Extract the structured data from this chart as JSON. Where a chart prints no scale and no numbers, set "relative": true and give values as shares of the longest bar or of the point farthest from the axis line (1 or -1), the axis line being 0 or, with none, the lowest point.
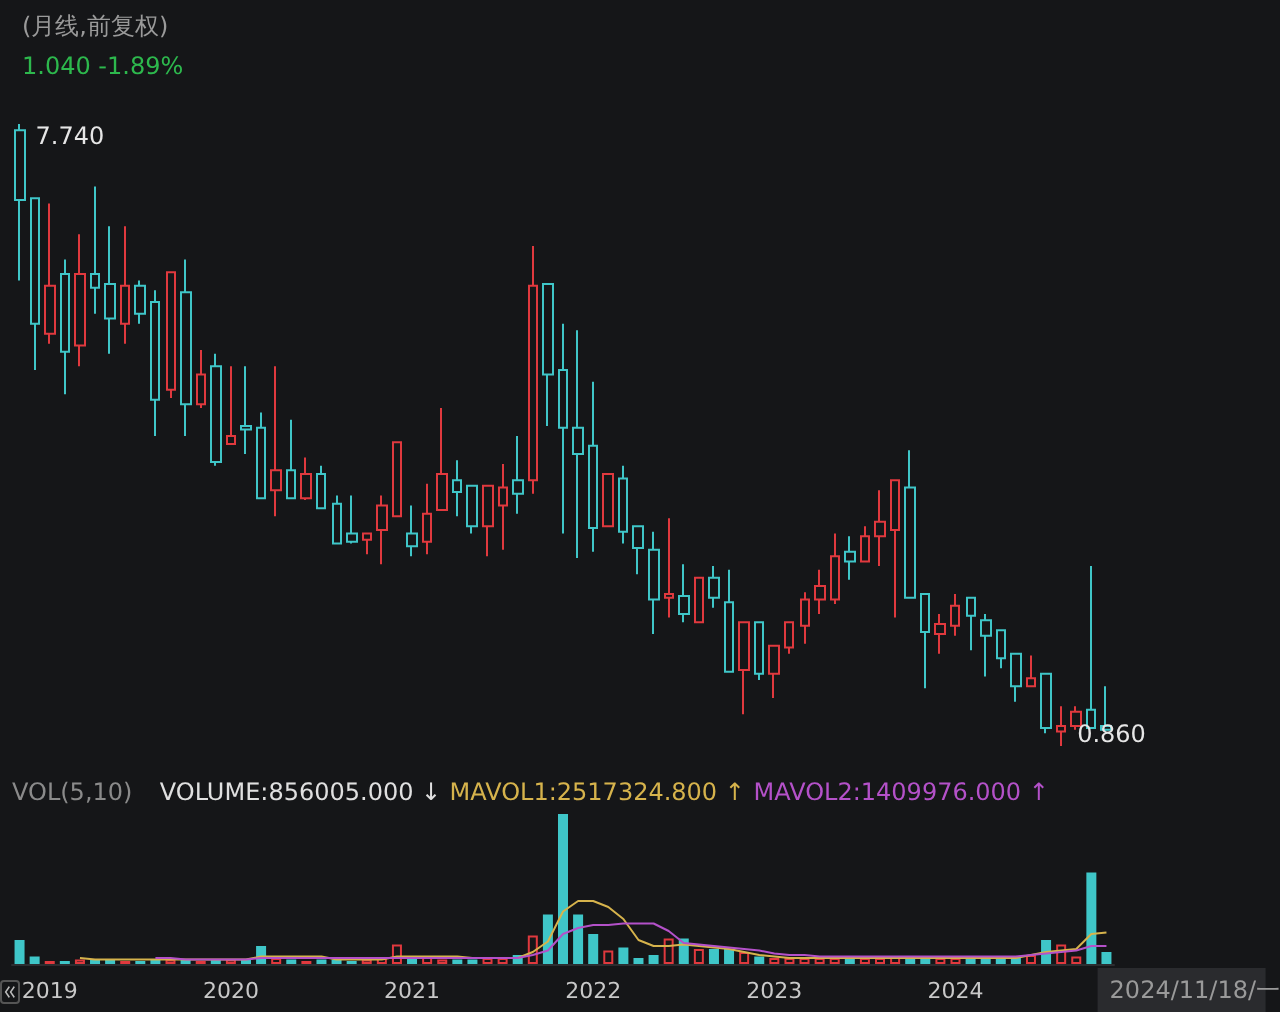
{
  "chart_data": [
    {
      "type": "candlestick",
      "title": "(月线,前复权)",
      "subtitle": "1.040 -1.89%",
      "tick_labels": false,
      "categories": [
        null,
        null,
        "2019",
        null,
        null,
        null,
        null,
        null,
        null,
        null,
        null,
        null,
        null,
        null,
        "2020",
        null,
        null,
        null,
        null,
        null,
        null,
        null,
        null,
        null,
        null,
        null,
        "2021",
        null,
        null,
        null,
        null,
        null,
        null,
        null,
        null,
        null,
        null,
        null,
        "2022",
        null,
        null,
        null,
        null,
        null,
        null,
        null,
        null,
        null,
        null,
        null,
        "2023",
        null,
        null,
        null,
        null,
        null,
        null,
        null,
        null,
        null,
        null,
        null,
        "2024",
        null,
        null,
        null,
        null,
        null,
        null,
        null,
        null,
        null,
        null
      ],
      "ohlc": [
        [
          7.67,
          7.74,
          6.01,
          6.9
        ],
        [
          6.92,
          6.92,
          5.02,
          5.53
        ],
        [
          5.42,
          6.86,
          5.31,
          5.95
        ],
        [
          6.08,
          6.24,
          4.75,
          5.22
        ],
        [
          5.29,
          6.52,
          5.06,
          6.08
        ],
        [
          6.08,
          7.05,
          5.64,
          5.93
        ],
        [
          5.97,
          6.61,
          5.2,
          5.59
        ],
        [
          5.53,
          6.61,
          5.31,
          5.95
        ],
        [
          5.95,
          6.01,
          5.53,
          5.64
        ],
        [
          5.77,
          5.9,
          4.29,
          4.69
        ],
        [
          4.8,
          6.1,
          4.71,
          6.1
        ],
        [
          5.88,
          6.24,
          4.29,
          4.64
        ],
        [
          4.64,
          5.24,
          4.6,
          4.97
        ],
        [
          5.06,
          5.2,
          3.96,
          4.0
        ],
        [
          4.2,
          5.06,
          4.2,
          4.29
        ],
        [
          4.4,
          5.06,
          4.09,
          4.36
        ],
        [
          4.38,
          4.55,
          3.6,
          3.6
        ],
        [
          3.69,
          5.06,
          3.4,
          3.91
        ],
        [
          3.91,
          4.47,
          3.6,
          3.6
        ],
        [
          3.6,
          4.05,
          3.58,
          3.87
        ],
        [
          3.87,
          3.96,
          3.49,
          3.49
        ],
        [
          3.54,
          3.63,
          3.1,
          3.1
        ],
        [
          3.21,
          3.63,
          3.1,
          3.12
        ],
        [
          3.14,
          3.21,
          2.98,
          3.21
        ],
        [
          3.25,
          3.63,
          2.87,
          3.52
        ],
        [
          3.4,
          4.22,
          3.4,
          4.22
        ],
        [
          3.21,
          3.52,
          2.96,
          3.07
        ],
        [
          3.12,
          3.76,
          2.98,
          3.43
        ],
        [
          3.47,
          4.6,
          3.47,
          3.87
        ],
        [
          3.8,
          4.02,
          3.4,
          3.67
        ],
        [
          3.74,
          3.74,
          3.21,
          3.29
        ],
        [
          3.29,
          3.74,
          2.96,
          3.74
        ],
        [
          3.52,
          3.98,
          3.03,
          3.72
        ],
        [
          3.8,
          4.29,
          3.43,
          3.65
        ],
        [
          3.8,
          6.39,
          3.65,
          5.95
        ],
        [
          5.97,
          5.97,
          4.4,
          4.97
        ],
        [
          5.02,
          5.53,
          3.21,
          4.38
        ],
        [
          4.38,
          5.46,
          2.94,
          4.09
        ],
        [
          4.18,
          4.89,
          3.01,
          3.27
        ],
        [
          3.29,
          3.87,
          3.29,
          3.87
        ],
        [
          3.82,
          3.96,
          3.1,
          3.23
        ],
        [
          3.29,
          3.29,
          2.76,
          3.05
        ],
        [
          3.03,
          3.23,
          2.1,
          2.48
        ],
        [
          2.5,
          3.38,
          2.28,
          2.54
        ],
        [
          2.52,
          2.87,
          2.23,
          2.32
        ],
        [
          2.23,
          2.72,
          2.23,
          2.72
        ],
        [
          2.72,
          2.85,
          2.39,
          2.5
        ],
        [
          2.45,
          2.81,
          1.68,
          1.68
        ],
        [
          1.7,
          2.23,
          1.21,
          2.23
        ],
        [
          2.23,
          2.23,
          1.59,
          1.66
        ],
        [
          1.66,
          1.97,
          1.39,
          1.97
        ],
        [
          1.95,
          2.23,
          1.88,
          2.23
        ],
        [
          2.19,
          2.56,
          1.99,
          2.48
        ],
        [
          2.48,
          2.81,
          2.32,
          2.63
        ],
        [
          2.48,
          3.21,
          2.43,
          2.96
        ],
        [
          3.01,
          3.18,
          2.7,
          2.9
        ],
        [
          2.9,
          3.29,
          2.9,
          3.18
        ],
        [
          3.18,
          3.69,
          2.85,
          3.34
        ],
        [
          3.25,
          3.8,
          2.28,
          3.8
        ],
        [
          3.72,
          4.13,
          2.5,
          2.5
        ],
        [
          2.54,
          2.54,
          1.5,
          2.12
        ],
        [
          2.1,
          2.32,
          1.88,
          2.21
        ],
        [
          2.19,
          2.54,
          2.08,
          2.41
        ],
        [
          2.5,
          2.5,
          1.92,
          2.3
        ],
        [
          2.25,
          2.32,
          1.63,
          2.08
        ],
        [
          2.14,
          2.14,
          1.72,
          1.83
        ],
        [
          1.88,
          1.88,
          1.35,
          1.52
        ],
        [
          1.52,
          1.86,
          1.52,
          1.61
        ],
        [
          1.66,
          1.66,
          1.0,
          1.06
        ],
        [
          1.02,
          1.3,
          0.86,
          1.08
        ],
        [
          1.08,
          1.3,
          1.04,
          1.24
        ],
        [
          1.26,
          2.85,
          1.06,
          1.06
        ],
        [
          1.08,
          1.52,
          1.02,
          1.04
        ]
      ],
      "colors": [
        "#3fc6c8",
        "#3fc6c8",
        "#e0393e",
        "#3fc6c8",
        "#e0393e",
        "#3fc6c8",
        "#3fc6c8",
        "#e0393e",
        "#3fc6c8",
        "#3fc6c8",
        "#e0393e",
        "#3fc6c8",
        "#e0393e",
        "#3fc6c8",
        "#e0393e",
        "#3fc6c8",
        "#3fc6c8",
        "#e0393e",
        "#3fc6c8",
        "#e0393e",
        "#3fc6c8",
        "#3fc6c8",
        "#3fc6c8",
        "#e0393e",
        "#e0393e",
        "#e0393e",
        "#3fc6c8",
        "#e0393e",
        "#e0393e",
        "#3fc6c8",
        "#3fc6c8",
        "#e0393e",
        "#e0393e",
        "#3fc6c8",
        "#e0393e",
        "#3fc6c8",
        "#3fc6c8",
        "#3fc6c8",
        "#3fc6c8",
        "#e0393e",
        "#3fc6c8",
        "#3fc6c8",
        "#3fc6c8",
        "#e0393e",
        "#3fc6c8",
        "#e0393e",
        "#3fc6c8",
        "#3fc6c8",
        "#e0393e",
        "#3fc6c8",
        "#e0393e",
        "#e0393e",
        "#e0393e",
        "#e0393e",
        "#e0393e",
        "#3fc6c8",
        "#e0393e",
        "#e0393e",
        "#e0393e",
        "#3fc6c8",
        "#3fc6c8",
        "#e0393e",
        "#e0393e",
        "#3fc6c8",
        "#3fc6c8",
        "#3fc6c8",
        "#3fc6c8",
        "#e0393e",
        "#3fc6c8",
        "#e0393e",
        "#e0393e",
        "#3fc6c8",
        "#3fc6c8"
      ],
      "annotations": [
        "7.740",
        "0.860"
      ]
    },
    {
      "type": "bar",
      "relative": true,
      "marker": "none",
      "categories": [
        null,
        null,
        "2019",
        null,
        null,
        null,
        null,
        null,
        null,
        null,
        null,
        null,
        null,
        null,
        "2020",
        null,
        null,
        null,
        null,
        null,
        null,
        null,
        null,
        null,
        null,
        null,
        "2021",
        null,
        null,
        null,
        null,
        null,
        null,
        null,
        null,
        null,
        null,
        null,
        "2022",
        null,
        null,
        null,
        null,
        null,
        null,
        null,
        null,
        null,
        null,
        null,
        "2023",
        null,
        null,
        null,
        null,
        null,
        null,
        null,
        null,
        null,
        null,
        null,
        "2024",
        null,
        null,
        null,
        null,
        null,
        null,
        null,
        null,
        null,
        null
      ],
      "series": [
        {
          "type": "bar",
          "colors": [
            "#3fc6c8",
            "#3fc6c8",
            "#e0393e",
            "#3fc6c8",
            "#e0393e",
            "#3fc6c8",
            "#3fc6c8",
            "#e0393e",
            "#3fc6c8",
            "#3fc6c8",
            "#e0393e",
            "#3fc6c8",
            "#e0393e",
            "#3fc6c8",
            "#e0393e",
            "#3fc6c8",
            "#3fc6c8",
            "#e0393e",
            "#3fc6c8",
            "#e0393e",
            "#3fc6c8",
            "#3fc6c8",
            "#3fc6c8",
            "#e0393e",
            "#e0393e",
            "#e0393e",
            "#3fc6c8",
            "#e0393e",
            "#e0393e",
            "#3fc6c8",
            "#3fc6c8",
            "#e0393e",
            "#e0393e",
            "#3fc6c8",
            "#e0393e",
            "#3fc6c8",
            "#3fc6c8",
            "#3fc6c8",
            "#3fc6c8",
            "#e0393e",
            "#3fc6c8",
            "#3fc6c8",
            "#3fc6c8",
            "#e0393e",
            "#3fc6c8",
            "#e0393e",
            "#3fc6c8",
            "#3fc6c8",
            "#e0393e",
            "#3fc6c8",
            "#e0393e",
            "#e0393e",
            "#e0393e",
            "#e0393e",
            "#e0393e",
            "#3fc6c8",
            "#e0393e",
            "#e0393e",
            "#e0393e",
            "#3fc6c8",
            "#3fc6c8",
            "#e0393e",
            "#e0393e",
            "#3fc6c8",
            "#3fc6c8",
            "#3fc6c8",
            "#3fc6c8",
            "#e0393e",
            "#3fc6c8",
            "#e0393e",
            "#e0393e",
            "#3fc6c8",
            "#3fc6c8"
          ],
          "values": [
            0.16,
            0.05,
            0.02,
            0.02,
            0.03,
            0.03,
            0.03,
            0.02,
            0.02,
            0.03,
            0.03,
            0.03,
            0.02,
            0.03,
            0.03,
            0.03,
            0.12,
            0.04,
            0.03,
            0.02,
            0.03,
            0.03,
            0.02,
            0.03,
            0.04,
            0.13,
            0.05,
            0.05,
            0.03,
            0.03,
            0.03,
            0.04,
            0.04,
            0.06,
            0.19,
            0.33,
            1,
            0.33,
            0.2,
            0.09,
            0.11,
            0.04,
            0.06,
            0.17,
            0.17,
            0.1,
            0.1,
            0.1,
            0.08,
            0.05,
            0.04,
            0.04,
            0.04,
            0.04,
            0.04,
            0.04,
            0.04,
            0.04,
            0.05,
            0.05,
            0.04,
            0.04,
            0.04,
            0.04,
            0.04,
            0.04,
            0.05,
            0.06,
            0.16,
            0.13,
            0.05,
            0.61,
            0.08
          ]
        },
        {
          "type": "line",
          "color": "#d6b34c",
          "values": [
            null,
            null,
            null,
            null,
            0.04,
            0.03,
            0.03,
            0.03,
            0.03,
            0.03,
            0.03,
            0.03,
            0.03,
            0.03,
            0.03,
            0.03,
            0.05,
            0.05,
            0.05,
            0.05,
            0.05,
            0.03,
            0.03,
            0.03,
            0.03,
            0.05,
            0.05,
            0.05,
            0.05,
            0.05,
            0.04,
            0.04,
            0.04,
            0.04,
            0.08,
            0.15,
            0.35,
            0.42,
            0.42,
            0.38,
            0.3,
            0.16,
            0.12,
            0.12,
            0.13,
            0.12,
            0.11,
            0.1,
            0.08,
            0.06,
            0.05,
            0.04,
            0.04,
            0.04,
            0.04,
            0.04,
            0.04,
            0.04,
            0.04,
            0.04,
            0.04,
            0.04,
            0.04,
            0.04,
            0.04,
            0.04,
            0.04,
            0.06,
            0.08,
            0.09,
            0.1,
            0.2,
            0.21
          ]
        },
        {
          "type": "line",
          "color": "#b451c9",
          "values": [
            null,
            null,
            null,
            null,
            null,
            null,
            null,
            null,
            null,
            0.04,
            0.04,
            0.03,
            0.03,
            0.03,
            0.03,
            0.03,
            0.04,
            0.04,
            0.04,
            0.04,
            0.04,
            0.04,
            0.04,
            0.04,
            0.04,
            0.04,
            0.04,
            0.04,
            0.04,
            0.04,
            0.04,
            0.04,
            0.04,
            0.04,
            0.06,
            0.09,
            0.2,
            0.24,
            0.26,
            0.26,
            0.27,
            0.27,
            0.27,
            0.22,
            0.14,
            0.13,
            0.12,
            0.11,
            0.1,
            0.09,
            0.07,
            0.06,
            0.06,
            0.05,
            0.05,
            0.05,
            0.05,
            0.05,
            0.05,
            0.05,
            0.05,
            0.05,
            0.05,
            0.05,
            0.05,
            0.05,
            0.05,
            0.06,
            0.07,
            0.08,
            0.09,
            0.12,
            0.12
          ]
        }
      ],
      "annotations": [
        "VOL(5,10)",
        "VOLUME:856005.000 ↓",
        "MAVOL1:2517324.800 ↑",
        "MAVOL2:1409976.000 ↑",
        "2024/11/18/一"
      ]
    }
  ]
}
